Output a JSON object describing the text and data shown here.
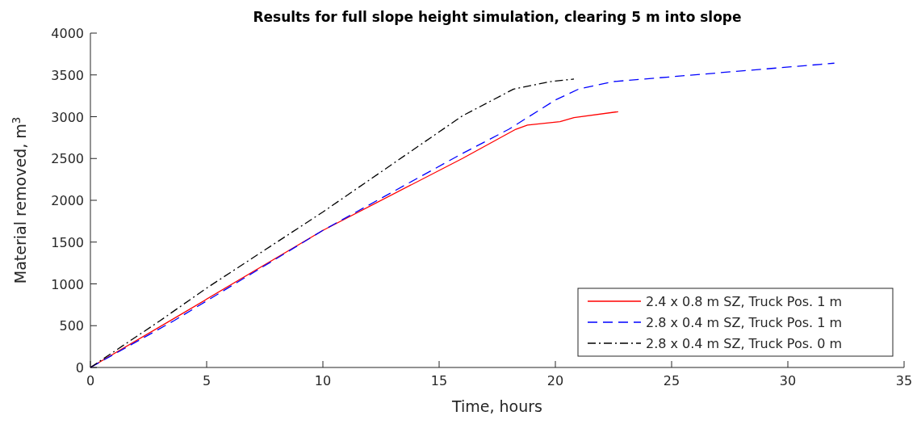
{
  "chart_data": {
    "type": "line",
    "title": "Results for full slope height simulation, clearing 5 m into slope",
    "xlabel": "Time, hours",
    "ylabel": "Material removed, m$^{3}$",
    "xlim": [
      0,
      35
    ],
    "ylim": [
      0,
      4000
    ],
    "xticks": [
      0,
      5,
      10,
      15,
      20,
      25,
      30,
      35
    ],
    "yticks": [
      0,
      500,
      1000,
      1500,
      2000,
      2500,
      3000,
      3500,
      4000
    ],
    "grid": false,
    "legend": "bottom right",
    "series": [
      {
        "name": "2.4 x 0.8 m SZ, Truck Pos. 1 m",
        "color": "#ff0000",
        "line_style": "solid",
        "x": [
          0,
          3.8,
          10,
          16,
          18.3,
          18.8,
          20.2,
          20.8,
          22.7
        ],
        "values": [
          0,
          620,
          1640,
          2500,
          2850,
          2900,
          2940,
          2990,
          3060
        ]
      },
      {
        "name": "2.8 x 0.4 m SZ, Truck Pos. 1 m",
        "color": "#0000ff",
        "line_style": "dashed",
        "x": [
          0,
          3.6,
          10,
          16,
          18,
          20,
          21,
          22.5,
          32
        ],
        "values": [
          0,
          560,
          1640,
          2560,
          2850,
          3200,
          3330,
          3420,
          3640
        ]
      },
      {
        "name": "2.8 x 0.4 m SZ, Truck Pos. 0 m",
        "color": "#000000",
        "line_style": "dashdot",
        "x": [
          0,
          3,
          5,
          10,
          16,
          18.2,
          19.8,
          20.8
        ],
        "values": [
          0,
          560,
          950,
          1860,
          3010,
          3330,
          3420,
          3450
        ]
      }
    ]
  }
}
